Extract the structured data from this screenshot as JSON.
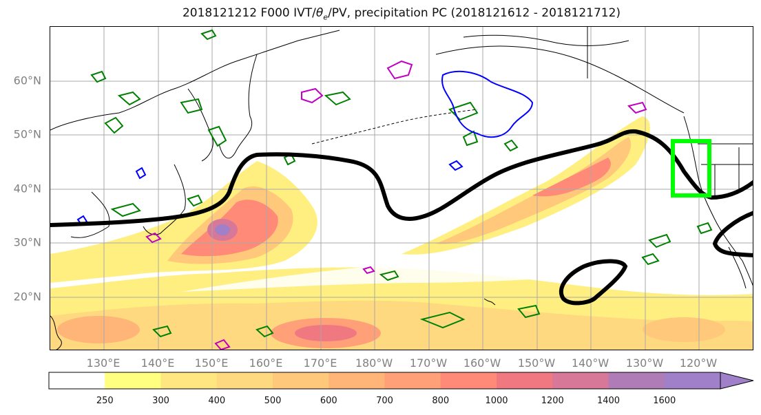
{
  "title": "2018121212 F000 IVT/θe/PV, precipitation PC (2018121612 - 2018121712)",
  "title_parts": {
    "prefix": "2018121212 F000 IVT/",
    "theta": "θ",
    "sub": "e",
    "suffix": "/PV, precipitation PC (2018121612 - 2018121712)"
  },
  "map": {
    "lat_labels": [
      "60°N",
      "50°N",
      "40°N",
      "30°N",
      "20°N"
    ],
    "lon_labels": [
      "130°E",
      "140°E",
      "150°E",
      "160°E",
      "170°E",
      "180°W",
      "170°W",
      "160°W",
      "150°W",
      "140°W",
      "130°W",
      "120°W"
    ],
    "grid_color": "#a8a8a8",
    "coastline_color": "#000000",
    "axis_label_color": "#808080",
    "contour_colors": {
      "pv_black": "#000000",
      "precip_green": "#008000",
      "theta_blue": "#0000ff",
      "magenta": "#c000c0",
      "region_box": "#00ff00"
    }
  },
  "colorbar": {
    "levels": [
      "250",
      "300",
      "400",
      "500",
      "600",
      "700",
      "800",
      "1000",
      "1200",
      "1400",
      "1600"
    ],
    "colors": [
      "#ffffff",
      "#ffff80",
      "#ffe680",
      "#ffd980",
      "#ffc87a",
      "#ffb478",
      "#ffa078",
      "#ff8a78",
      "#f07880",
      "#d87898",
      "#b07cb8",
      "#a080c8"
    ]
  }
}
